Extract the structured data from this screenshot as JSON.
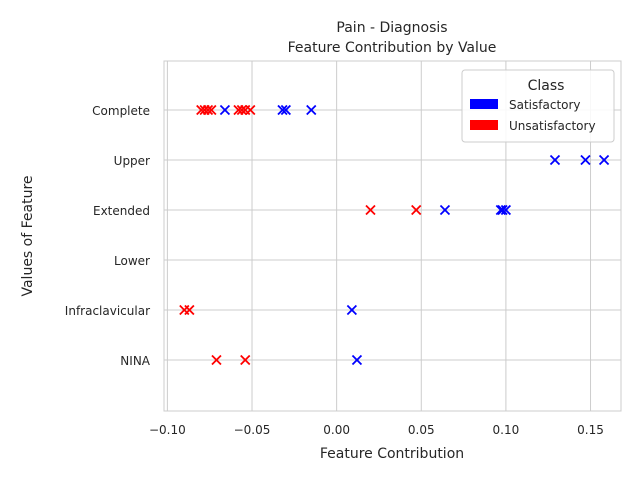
{
  "chart_data": {
    "type": "scatter",
    "title": "Pain - Diagnosis",
    "subtitle": "Feature Contribution by Value",
    "xlabel": "Feature Contribution",
    "ylabel": "Values of Feature",
    "xlim": [
      -0.102,
      0.168
    ],
    "x_ticks": [
      -0.1,
      -0.05,
      0.0,
      0.05,
      0.1,
      0.15
    ],
    "x_tick_labels": [
      "−0.10",
      "−0.05",
      "0.00",
      "0.05",
      "0.10",
      "0.15"
    ],
    "categories": [
      "Complete",
      "Upper",
      "Extended",
      "Lower",
      "Infraclavicular",
      "NINA"
    ],
    "grid": true,
    "marker": "x",
    "legend": {
      "title": "Class",
      "placement": "top-right",
      "entries": [
        {
          "label": "Satisfactory",
          "color": "#0000ff"
        },
        {
          "label": "Unsatisfactory",
          "color": "#ff0000"
        }
      ]
    },
    "series": [
      {
        "name": "Satisfactory",
        "color": "#0000ff",
        "points": [
          {
            "category": "Complete",
            "x": -0.066
          },
          {
            "category": "Complete",
            "x": -0.032
          },
          {
            "category": "Complete",
            "x": -0.03
          },
          {
            "category": "Complete",
            "x": -0.015
          },
          {
            "category": "Upper",
            "x": 0.129
          },
          {
            "category": "Upper",
            "x": 0.147
          },
          {
            "category": "Upper",
            "x": 0.158
          },
          {
            "category": "Extended",
            "x": 0.064
          },
          {
            "category": "Extended",
            "x": 0.097
          },
          {
            "category": "Extended",
            "x": 0.098
          },
          {
            "category": "Extended",
            "x": 0.1
          },
          {
            "category": "Infraclavicular",
            "x": 0.009
          },
          {
            "category": "NINA",
            "x": 0.012
          }
        ]
      },
      {
        "name": "Unsatisfactory",
        "color": "#ff0000",
        "points": [
          {
            "category": "Complete",
            "x": -0.08
          },
          {
            "category": "Complete",
            "x": -0.078
          },
          {
            "category": "Complete",
            "x": -0.076
          },
          {
            "category": "Complete",
            "x": -0.074
          },
          {
            "category": "Complete",
            "x": -0.058
          },
          {
            "category": "Complete",
            "x": -0.056
          },
          {
            "category": "Complete",
            "x": -0.054
          },
          {
            "category": "Complete",
            "x": -0.051
          },
          {
            "category": "Extended",
            "x": 0.02
          },
          {
            "category": "Extended",
            "x": 0.047
          },
          {
            "category": "Infraclavicular",
            "x": -0.09
          },
          {
            "category": "Infraclavicular",
            "x": -0.087
          },
          {
            "category": "NINA",
            "x": -0.071
          },
          {
            "category": "NINA",
            "x": -0.054
          }
        ]
      }
    ]
  }
}
